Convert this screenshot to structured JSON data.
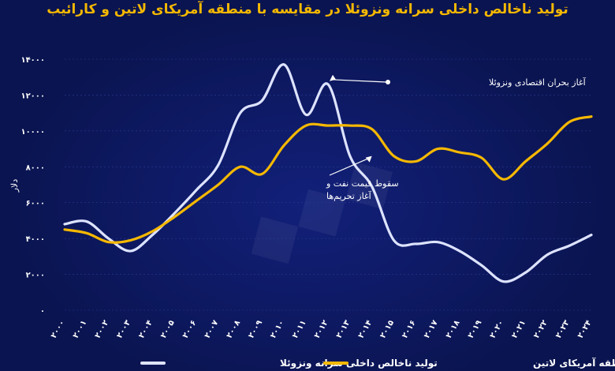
{
  "chart_data": {
    "type": "line",
    "title": "تولید ناخالص داخلی سرانه ونزوئلا در مقایسه با منطقه آمریکای لاتین و کارائیب",
    "ylabel": "دلار",
    "xlabel": "",
    "ylim": [
      0,
      14000
    ],
    "yticks": [
      0,
      2000,
      4000,
      6000,
      8000,
      10000,
      12000,
      14000
    ],
    "ytick_labels": [
      "۰",
      "۲۰۰۰",
      "۴۰۰۰",
      "۶۰۰۰",
      "۸۰۰۰",
      "۱۰۰۰۰",
      "۱۲۰۰۰",
      "۱۴۰۰۰"
    ],
    "x": [
      2000,
      2001,
      2002,
      2003,
      2004,
      2005,
      2006,
      2007,
      2008,
      2009,
      2010,
      2011,
      2012,
      2013,
      2014,
      2015,
      2016,
      2017,
      2018,
      2019,
      2020,
      2021,
      2022,
      2023,
      2024
    ],
    "x_labels": [
      "۲۰۰۰",
      "۲۰۰۱",
      "۲۰۰۲",
      "۲۰۰۳",
      "۲۰۰۴",
      "۲۰۰۵",
      "۲۰۰۶",
      "۲۰۰۷",
      "۲۰۰۸",
      "۲۰۰۹",
      "۲۰۱۰",
      "۲۰۱۱",
      "۲۰۱۲",
      "۲۰۱۳",
      "۲۰۱۴",
      "۲۰۱۵",
      "۲۰۱۶",
      "۲۰۱۷",
      "۲۰۱۸",
      "۲۰۱۹",
      "۲۰۲۰",
      "۲۰۲۱",
      "۲۰۲۲",
      "۲۰۲۳",
      "۲۰۲۴"
    ],
    "series": [
      {
        "name": "تولید ناخالص داخلی سرانه ونزوئلا",
        "color": "#dde3ff",
        "values": [
          4800,
          4950,
          4000,
          3300,
          4200,
          5400,
          6700,
          8100,
          11000,
          11700,
          13700,
          10900,
          12600,
          8600,
          6900,
          3900,
          3700,
          3800,
          3300,
          2500,
          1600,
          2100,
          3100,
          3600,
          4200
        ]
      },
      {
        "name": "تولید ناخالص داخلی سرانه منطقه آمریکای لاتین",
        "color": "#f5b800",
        "values": [
          4500,
          4300,
          3800,
          3900,
          4400,
          5200,
          6100,
          7000,
          8000,
          7600,
          9200,
          10300,
          10300,
          10300,
          10100,
          8600,
          8300,
          9000,
          8800,
          8500,
          7300,
          8300,
          9300,
          10500,
          10800
        ]
      }
    ],
    "annotations": [
      {
        "text": "آغاز بحران اقتصادی ونزوئلا",
        "x": 2012,
        "y": 12600
      },
      {
        "text_line1": "سقوط قیمت نفت و",
        "text_line2": "آغاز تحریم‌ها",
        "x": 2014,
        "y": 8600
      }
    ],
    "legend_position": "bottom"
  }
}
